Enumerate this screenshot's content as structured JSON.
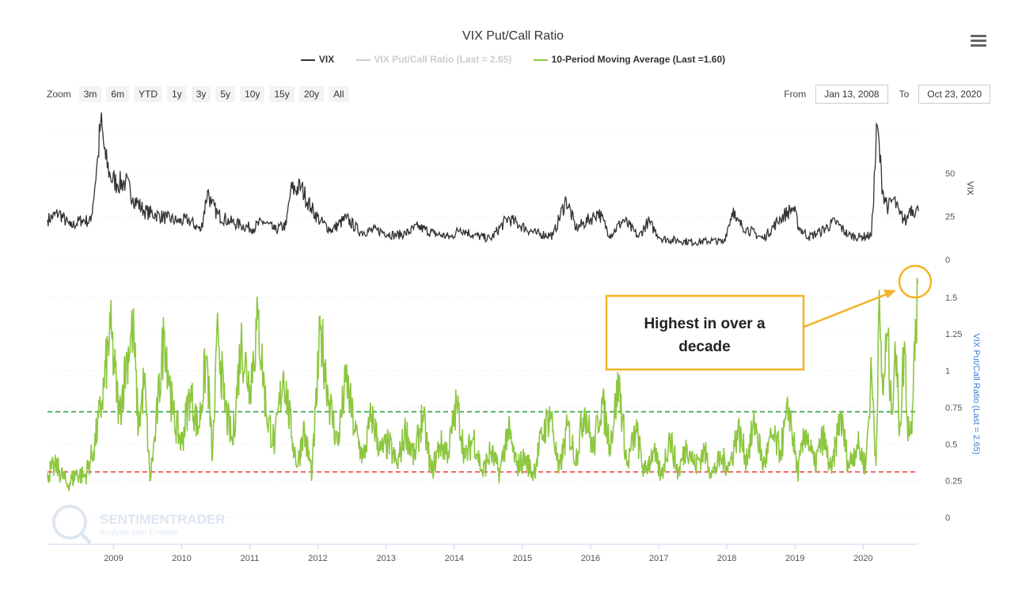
{
  "title": "VIX Put/Call Ratio",
  "legend": [
    {
      "name": "VIX",
      "color": "#333333",
      "text_color": "#333333"
    },
    {
      "name": "VIX Put/Call Ratio (Last = 2.65)",
      "color": "#cccccc",
      "text_color": "#cccccc"
    },
    {
      "name": "10-Period Moving Average (Last =1.60)",
      "color": "#8dc63f",
      "text_color": "#333333"
    }
  ],
  "zoom": {
    "label": "Zoom",
    "buttons": [
      "3m",
      "6m",
      "YTD",
      "1y",
      "3y",
      "5y",
      "10y",
      "15y",
      "20y",
      "All"
    ]
  },
  "range": {
    "from_label": "From",
    "from_value": "Jan 13, 2008",
    "to_label": "To",
    "to_value": "Oct 23, 2020"
  },
  "watermark": {
    "brand": "SENTIMENTRADER",
    "tagline": "Analysis over Emotion"
  },
  "annotation": {
    "text_line1": "Highest in over a",
    "text_line2": "decade",
    "color": "#f5b324"
  },
  "colors": {
    "vix": "#333333",
    "ma": "#8dc63f",
    "green_ref": "#2e9e3e",
    "red_ref": "#e8312f",
    "axis_label_blue": "#3d7ad6"
  },
  "chart_data": [
    {
      "type": "line",
      "name": "VIX",
      "ylabel": "VIX",
      "yticks": [
        0,
        25,
        50
      ],
      "ylim": [
        0,
        80
      ],
      "xlim": [
        "2008-01-13",
        "2020-10-23"
      ],
      "xticks": [
        "2009",
        "2010",
        "2011",
        "2012",
        "2013",
        "2014",
        "2015",
        "2016",
        "2017",
        "2018",
        "2019",
        "2020"
      ],
      "series": [
        {
          "name": "VIX",
          "x": [
            "2008-01-13",
            "2008-03-15",
            "2008-05-15",
            "2008-07-15",
            "2008-09-01",
            "2008-10-10",
            "2008-10-24",
            "2008-11-20",
            "2008-12-15",
            "2009-01-20",
            "2009-03-06",
            "2009-04-15",
            "2009-06-15",
            "2009-08-15",
            "2009-10-15",
            "2009-12-15",
            "2010-02-05",
            "2010-04-15",
            "2010-05-20",
            "2010-06-10",
            "2010-07-15",
            "2010-09-15",
            "2010-11-15",
            "2011-01-15",
            "2011-03-16",
            "2011-05-15",
            "2011-07-15",
            "2011-08-08",
            "2011-10-03",
            "2011-11-25",
            "2012-01-15",
            "2012-03-15",
            "2012-06-01",
            "2012-08-15",
            "2012-11-15",
            "2013-02-15",
            "2013-04-15",
            "2013-06-20",
            "2013-09-15",
            "2013-12-15",
            "2014-02-03",
            "2014-04-15",
            "2014-07-15",
            "2014-10-15",
            "2014-12-15",
            "2015-03-15",
            "2015-06-15",
            "2015-08-24",
            "2015-10-15",
            "2016-01-20",
            "2016-02-11",
            "2016-04-15",
            "2016-06-27",
            "2016-09-15",
            "2016-11-04",
            "2017-01-15",
            "2017-04-15",
            "2017-07-15",
            "2017-10-15",
            "2017-12-15",
            "2018-02-05",
            "2018-02-20",
            "2018-04-15",
            "2018-07-15",
            "2018-10-15",
            "2018-12-24",
            "2019-01-20",
            "2019-03-15",
            "2019-05-15",
            "2019-08-05",
            "2019-10-15",
            "2019-12-15",
            "2020-02-15",
            "2020-03-16",
            "2020-04-15",
            "2020-05-15",
            "2020-06-12",
            "2020-07-15",
            "2020-08-20",
            "2020-09-08",
            "2020-10-23"
          ],
          "values": [
            23,
            27,
            19,
            23,
            22,
            60,
            80,
            58,
            48,
            44,
            45,
            36,
            28,
            26,
            24,
            22,
            23,
            17,
            40,
            32,
            26,
            22,
            20,
            18,
            22,
            17,
            20,
            40,
            42,
            30,
            22,
            17,
            24,
            16,
            17,
            14,
            15,
            19,
            15,
            13,
            18,
            14,
            12,
            24,
            20,
            15,
            14,
            35,
            18,
            25,
            28,
            14,
            23,
            13,
            22,
            12,
            11,
            10,
            11,
            10,
            30,
            22,
            18,
            12,
            24,
            30,
            19,
            13,
            16,
            22,
            14,
            13,
            14,
            78,
            40,
            30,
            35,
            26,
            22,
            30,
            28
          ]
        }
      ]
    },
    {
      "type": "line",
      "name": "VIX Put/Call Ratio (Last = 2.65)",
      "ylabel": "VIX Put/Call Ratio (Last = 2.65)",
      "yticks": [
        0,
        0.25,
        0.5,
        0.75,
        1,
        1.25,
        1.5
      ],
      "ylim": [
        0,
        1.75
      ],
      "xlim": [
        "2008-01-13",
        "2020-10-23"
      ],
      "xticks": [
        "2009",
        "2010",
        "2011",
        "2012",
        "2013",
        "2014",
        "2015",
        "2016",
        "2017",
        "2018",
        "2019",
        "2020"
      ],
      "reference_lines": [
        {
          "value": 0.72,
          "color": "#2e9e3e",
          "style": "dashed"
        },
        {
          "value": 0.31,
          "color": "#e8312f",
          "style": "dashed"
        }
      ],
      "series": [
        {
          "name": "10-Period Moving Average (Last =1.60)",
          "x": [
            "2008-01-13",
            "2008-03-01",
            "2008-05-01",
            "2008-06-15",
            "2008-08-01",
            "2008-09-15",
            "2008-11-01",
            "2008-12-15",
            "2009-02-01",
            "2009-03-15",
            "2009-04-15",
            "2009-05-15",
            "2009-06-15",
            "2009-07-15",
            "2009-08-15",
            "2009-10-01",
            "2009-11-15",
            "2010-01-01",
            "2010-02-15",
            "2010-04-01",
            "2010-05-15",
            "2010-06-15",
            "2010-07-15",
            "2010-08-15",
            "2010-10-01",
            "2010-11-15",
            "2011-01-01",
            "2011-02-15",
            "2011-04-01",
            "2011-05-15",
            "2011-07-01",
            "2011-08-15",
            "2011-09-15",
            "2011-10-15",
            "2011-12-01",
            "2012-01-15",
            "2012-03-01",
            "2012-04-15",
            "2012-06-01",
            "2012-07-15",
            "2012-09-01",
            "2012-10-15",
            "2012-12-01",
            "2013-01-15",
            "2013-03-01",
            "2013-04-15",
            "2013-06-01",
            "2013-07-15",
            "2013-09-01",
            "2013-10-15",
            "2013-12-01",
            "2014-01-15",
            "2014-03-01",
            "2014-04-15",
            "2014-06-01",
            "2014-07-15",
            "2014-09-01",
            "2014-10-15",
            "2014-12-01",
            "2015-01-15",
            "2015-03-01",
            "2015-04-15",
            "2015-06-01",
            "2015-07-15",
            "2015-09-01",
            "2015-10-15",
            "2015-12-01",
            "2016-01-15",
            "2016-03-01",
            "2016-04-15",
            "2016-06-01",
            "2016-07-15",
            "2016-09-01",
            "2016-10-15",
            "2016-12-01",
            "2017-01-15",
            "2017-03-01",
            "2017-04-15",
            "2017-06-01",
            "2017-07-15",
            "2017-09-01",
            "2017-10-15",
            "2017-12-01",
            "2018-01-15",
            "2018-03-01",
            "2018-04-15",
            "2018-06-01",
            "2018-07-15",
            "2018-09-01",
            "2018-10-15",
            "2018-12-01",
            "2019-01-15",
            "2019-03-01",
            "2019-04-15",
            "2019-06-01",
            "2019-07-15",
            "2019-09-01",
            "2019-10-15",
            "2019-12-01",
            "2020-01-15",
            "2020-02-15",
            "2020-03-10",
            "2020-03-25",
            "2020-04-15",
            "2020-05-10",
            "2020-06-01",
            "2020-06-20",
            "2020-07-15",
            "2020-08-10",
            "2020-08-25",
            "2020-09-15",
            "2020-10-01",
            "2020-10-23"
          ],
          "values": [
            0.3,
            0.35,
            0.22,
            0.3,
            0.28,
            0.45,
            0.8,
            1.28,
            0.7,
            1.1,
            1.3,
            0.6,
            0.95,
            0.25,
            0.6,
            1.28,
            0.7,
            0.5,
            0.85,
            0.6,
            1.1,
            0.4,
            1.3,
            0.8,
            0.5,
            1.2,
            0.9,
            1.35,
            0.7,
            0.5,
            1.0,
            0.55,
            0.35,
            0.6,
            0.3,
            1.28,
            0.8,
            0.5,
            0.95,
            0.6,
            0.4,
            0.7,
            0.45,
            0.5,
            0.35,
            0.6,
            0.4,
            0.7,
            0.3,
            0.5,
            0.45,
            0.78,
            0.4,
            0.55,
            0.3,
            0.45,
            0.3,
            0.6,
            0.35,
            0.4,
            0.3,
            0.55,
            0.72,
            0.3,
            0.62,
            0.4,
            0.75,
            0.45,
            0.8,
            0.5,
            0.92,
            0.35,
            0.6,
            0.3,
            0.45,
            0.28,
            0.55,
            0.3,
            0.5,
            0.35,
            0.45,
            0.3,
            0.4,
            0.35,
            0.6,
            0.4,
            0.65,
            0.35,
            0.55,
            0.45,
            0.75,
            0.3,
            0.6,
            0.35,
            0.55,
            0.3,
            0.7,
            0.35,
            0.5,
            0.35,
            1.0,
            0.35,
            1.4,
            0.85,
            1.25,
            0.7,
            1.2,
            0.6,
            1.2,
            0.65,
            0.58,
            1.2,
            1.6
          ]
        }
      ]
    }
  ]
}
